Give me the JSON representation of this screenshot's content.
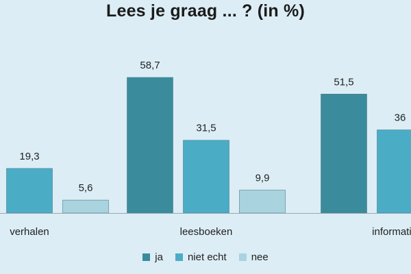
{
  "chart_data": {
    "type": "bar",
    "title": "Lees je graag ... ? (in %)",
    "categories": [
      "verhalen",
      "leesboeken",
      "informatieve"
    ],
    "series": [
      {
        "name": "ja",
        "values": [
          null,
          58.7,
          51.5
        ],
        "labels": [
          "",
          "58,7",
          "51,5"
        ],
        "color": "#3a8c9c"
      },
      {
        "name": "niet echt",
        "values": [
          19.3,
          31.5,
          36
        ],
        "labels": [
          "19,3",
          "31,5",
          "36"
        ],
        "color": "#4bacc6"
      },
      {
        "name": "nee",
        "values": [
          5.6,
          9.9,
          null
        ],
        "labels": [
          "5,6",
          "9,9",
          ""
        ],
        "color": "#a9d3df"
      }
    ],
    "ylim": [
      0,
      60
    ],
    "grid": false,
    "legend_position": "bottom",
    "xlabel": "",
    "ylabel": ""
  }
}
